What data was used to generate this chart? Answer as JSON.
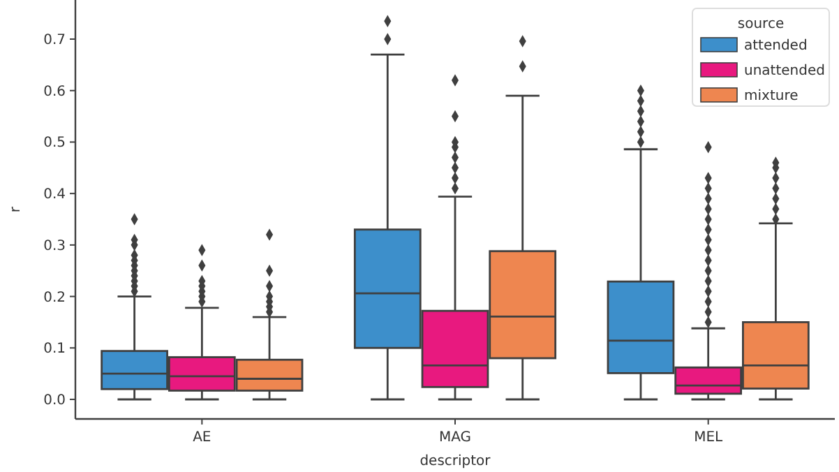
{
  "chart_data": {
    "type": "box",
    "xlabel": "descriptor",
    "ylabel": "r",
    "legend_title": "source",
    "categories": [
      "AE",
      "MAG",
      "MEL"
    ],
    "ylim": [
      -0.038,
      0.776
    ],
    "yticks": [
      {
        "value": 0,
        "label": "0.0"
      },
      0.1,
      0.2,
      0.3,
      0.4,
      0.5,
      0.6,
      0.7
    ],
    "grid": false,
    "legend": "top right",
    "marker": "diamond",
    "series": [
      {
        "name": "attended",
        "color": "#3d8fcb",
        "boxes": [
          {
            "low": 0,
            "q1": 0.02,
            "median": 0.05,
            "q3": 0.094,
            "high": 0.2,
            "outliers": [
              0.21,
              0.22,
              0.23,
              0.24,
              0.25,
              0.26,
              0.27,
              0.28,
              0.3,
              0.31,
              0.35
            ]
          },
          {
            "low": 0,
            "q1": 0.1,
            "median": 0.206,
            "q3": 0.33,
            "high": 0.67,
            "outliers": [
              0.7,
              0.735
            ]
          },
          {
            "low": 0,
            "q1": 0.051,
            "median": 0.114,
            "q3": 0.229,
            "high": 0.486,
            "outliers": [
              0.5,
              0.52,
              0.54,
              0.56,
              0.58,
              0.6
            ]
          }
        ]
      },
      {
        "name": "unattended",
        "color": "#e8197f",
        "boxes": [
          {
            "low": 0,
            "q1": 0.017,
            "median": 0.045,
            "q3": 0.082,
            "high": 0.178,
            "outliers": [
              0.19,
              0.2,
              0.21,
              0.22,
              0.23,
              0.26,
              0.29
            ]
          },
          {
            "low": 0,
            "q1": 0.024,
            "median": 0.066,
            "q3": 0.172,
            "high": 0.394,
            "outliers": [
              0.41,
              0.43,
              0.45,
              0.47,
              0.49,
              0.5,
              0.55,
              0.62
            ]
          },
          {
            "low": 0,
            "q1": 0.011,
            "median": 0.027,
            "q3": 0.062,
            "high": 0.138,
            "outliers": [
              0.15,
              0.17,
              0.19,
              0.21,
              0.23,
              0.25,
              0.27,
              0.29,
              0.31,
              0.33,
              0.35,
              0.37,
              0.39,
              0.41,
              0.43,
              0.49
            ]
          }
        ]
      },
      {
        "name": "mixture",
        "color": "#ee8650",
        "boxes": [
          {
            "low": 0,
            "q1": 0.017,
            "median": 0.04,
            "q3": 0.077,
            "high": 0.16,
            "outliers": [
              0.17,
              0.18,
              0.19,
              0.2,
              0.22,
              0.25,
              0.32
            ]
          },
          {
            "low": 0,
            "q1": 0.08,
            "median": 0.161,
            "q3": 0.288,
            "high": 0.59,
            "outliers": [
              0.647,
              0.696
            ]
          },
          {
            "low": 0,
            "q1": 0.021,
            "median": 0.066,
            "q3": 0.15,
            "high": 0.342,
            "outliers": [
              0.35,
              0.37,
              0.39,
              0.41,
              0.43,
              0.45,
              0.46
            ]
          }
        ]
      }
    ]
  }
}
